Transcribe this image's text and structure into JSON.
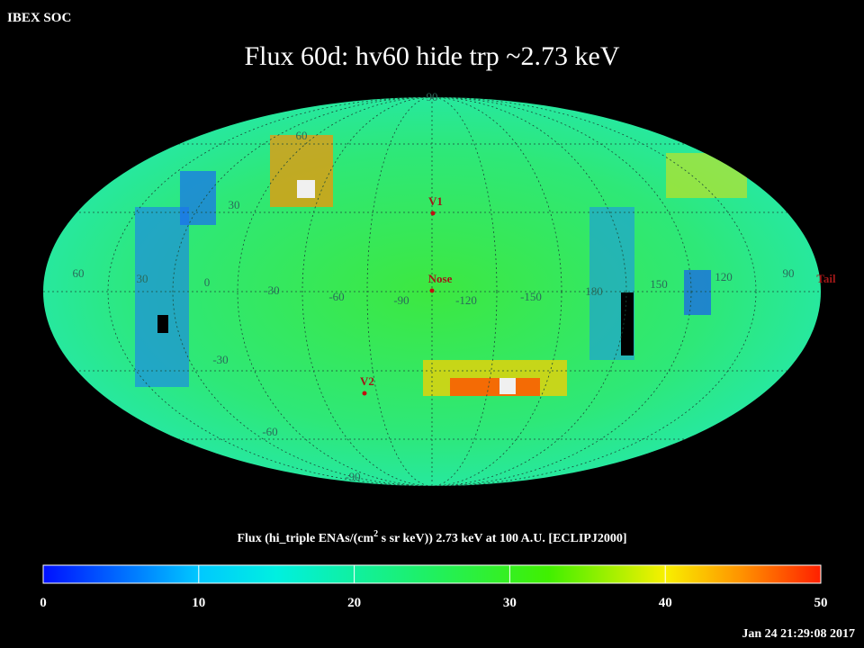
{
  "header": {
    "org": "IBEX SOC",
    "title": "Flux   60d: hv60 hide trp ~2.73 keV"
  },
  "map": {
    "lat_labels": [
      "90",
      "60",
      "30",
      "-30",
      "-60",
      "-90"
    ],
    "lon_labels": [
      "60",
      "30",
      "0",
      "-30",
      "-60",
      "-90",
      "-120",
      "-150",
      "180",
      "150",
      "120",
      "90"
    ],
    "markers": [
      "V1",
      "Nose",
      "V2",
      "Tail"
    ]
  },
  "colorbar": {
    "title_parts": [
      "Flux (hi_triple ENAs/(cm",
      "2",
      " s sr keV))  2.73 keV at 100 A.U. [ECLIPJ2000]"
    ],
    "ticks": [
      0,
      10,
      20,
      30,
      40,
      50
    ]
  },
  "footer": {
    "timestamp": "Jan 24 21:29:08 2017"
  }
}
